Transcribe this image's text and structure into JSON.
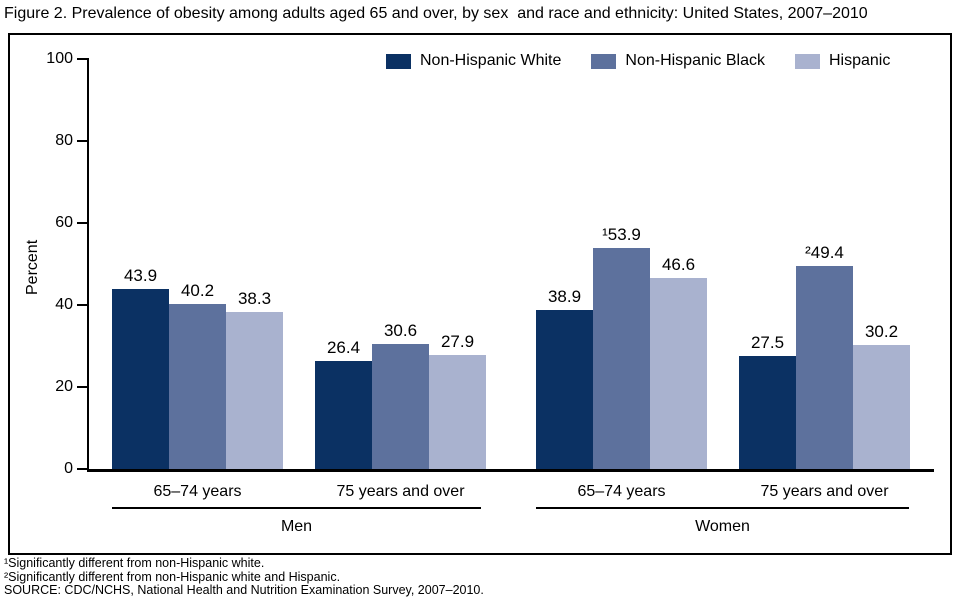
{
  "title": "Figure 2. Prevalence of obesity among adults aged 65 and over, by sex  and race and ethnicity: United States, 2007–2010",
  "chart_data": {
    "type": "bar",
    "title": "Figure 2. Prevalence of obesity among adults aged 65 and over, by sex  and race and ethnicity: United States, 2007–2010",
    "ylabel": "Percent",
    "ylim": [
      0,
      100
    ],
    "yticks": [
      0,
      20,
      40,
      60,
      80,
      100
    ],
    "grid": false,
    "legend_position": "top-inside",
    "categories": [
      "65–74 years",
      "75 years and over",
      "65–74 years",
      "75 years and over"
    ],
    "sex_groups": [
      "Men",
      "Women"
    ],
    "series": [
      {
        "name": "Non-Hispanic White",
        "color": "#0B3163",
        "values": [
          43.9,
          26.4,
          38.9,
          27.5
        ],
        "labels": [
          "43.9",
          "26.4",
          "38.9",
          "27.5"
        ]
      },
      {
        "name": "Non-Hispanic Black",
        "color": "#5D719D",
        "values": [
          40.2,
          30.6,
          53.9,
          49.4
        ],
        "labels": [
          "40.2",
          "30.6",
          "¹53.9",
          "²49.4"
        ]
      },
      {
        "name": "Hispanic",
        "color": "#A9B2CF",
        "values": [
          38.3,
          27.9,
          46.6,
          30.2
        ],
        "labels": [
          "38.3",
          "27.9",
          "46.6",
          "30.2"
        ]
      }
    ]
  },
  "footnotes": [
    "¹Significantly different from non-Hispanic white.",
    "²Significantly different from non-Hispanic white and Hispanic.",
    "SOURCE: CDC/NCHS, National Health and Nutrition Examination Survey, 2007–2010."
  ]
}
